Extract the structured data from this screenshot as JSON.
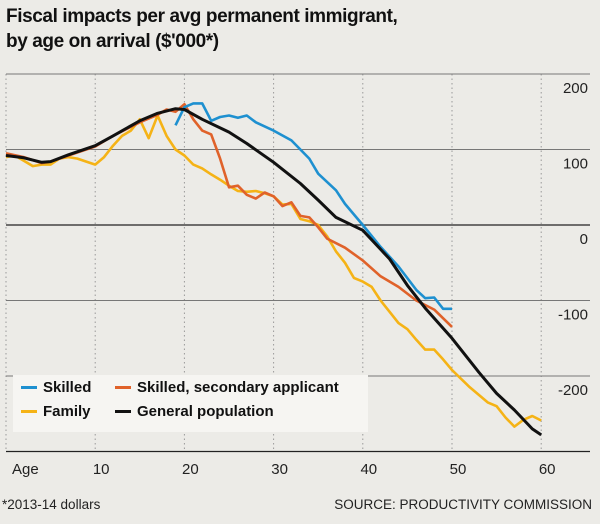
{
  "title_line1": "Fiscal impacts per avg permanent immigrant,",
  "title_line2": "by age on arrival ($'000*)",
  "footnote": "*2013-14 dollars",
  "source": "SOURCE: PRODUCTIVITY COMMISSION",
  "chart_data": {
    "type": "line",
    "title": "Fiscal impacts per avg permanent immigrant, by age on arrival ($'000*)",
    "xlabel": "Age",
    "ylabel": "$'000",
    "xlim": [
      0,
      65
    ],
    "ylim": [
      -300,
      200
    ],
    "x_ticks": [
      10,
      20,
      30,
      40,
      50,
      60
    ],
    "y_ticks": [
      200,
      100,
      0,
      -100,
      -200
    ],
    "grid": true,
    "legend_position": "bottom-left",
    "series": [
      {
        "name": "Skilled",
        "color": "#1e90d0",
        "x": [
          19,
          20,
          21,
          22,
          23,
          24,
          25,
          26,
          27,
          28,
          30,
          32,
          34,
          35,
          37,
          38,
          40,
          42,
          44,
          46,
          47,
          48,
          49,
          50
        ],
        "y": [
          132,
          156,
          161,
          161,
          138,
          143,
          145,
          142,
          145,
          136,
          125,
          112,
          88,
          68,
          46,
          28,
          0,
          -29,
          -55,
          -86,
          -97,
          -96,
          -111,
          -111
        ]
      },
      {
        "name": "Skilled, secondary applicant",
        "color": "#e0622a",
        "x": [
          0,
          2,
          4,
          5,
          7,
          10,
          12,
          15,
          17,
          18,
          19,
          20,
          21,
          22,
          23,
          24,
          25,
          26,
          27,
          28,
          29,
          30,
          31,
          32,
          33,
          34,
          35,
          36,
          38,
          40,
          42,
          44,
          46,
          48,
          50
        ],
        "y": [
          95,
          90,
          82,
          84,
          92,
          104,
          118,
          136,
          146,
          153,
          150,
          160,
          140,
          125,
          120,
          88,
          50,
          52,
          40,
          35,
          43,
          38,
          25,
          30,
          12,
          10,
          -3,
          -18,
          -30,
          -47,
          -68,
          -82,
          -100,
          -112,
          -135
        ]
      },
      {
        "name": "Family",
        "color": "#f5b316",
        "x": [
          0,
          1,
          2,
          3,
          4,
          5,
          6,
          7,
          8,
          9,
          10,
          11,
          12,
          13,
          14,
          15,
          16,
          17,
          18,
          19,
          20,
          21,
          22,
          23,
          24,
          25,
          26,
          27,
          28,
          29,
          30,
          31,
          32,
          33,
          34,
          35,
          36,
          37,
          38,
          39,
          40,
          41,
          42,
          43,
          44,
          45,
          46,
          47,
          48,
          49,
          50,
          52,
          54,
          55,
          56,
          57,
          58,
          59,
          60
        ],
        "y": [
          90,
          92,
          85,
          78,
          80,
          80,
          88,
          90,
          88,
          84,
          80,
          90,
          105,
          118,
          125,
          140,
          115,
          145,
          118,
          100,
          92,
          80,
          75,
          67,
          60,
          52,
          45,
          44,
          45,
          42,
          38,
          27,
          28,
          8,
          5,
          0,
          -15,
          -35,
          -50,
          -70,
          -75,
          -82,
          -100,
          -115,
          -130,
          -138,
          -152,
          -165,
          -165,
          -178,
          -192,
          -215,
          -235,
          -240,
          -255,
          -267,
          -258,
          -253,
          -259
        ]
      },
      {
        "name": "General population",
        "color": "#111111",
        "x": [
          0,
          2,
          4,
          5,
          7,
          10,
          12,
          15,
          17,
          19,
          20,
          22,
          25,
          27,
          30,
          33,
          35,
          37,
          40,
          43,
          45,
          47,
          50,
          53,
          55,
          57,
          59,
          60
        ],
        "y": [
          92,
          89,
          83,
          84,
          93,
          105,
          118,
          138,
          148,
          154,
          153,
          140,
          123,
          108,
          83,
          55,
          33,
          10,
          -7,
          -45,
          -80,
          -110,
          -150,
          -195,
          -223,
          -245,
          -270,
          -278
        ]
      }
    ]
  }
}
